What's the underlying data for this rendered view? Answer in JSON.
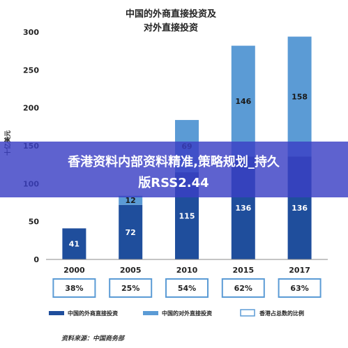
{
  "chart_data": {
    "type": "bar",
    "stacked": true,
    "title_lines": [
      "中国的外商直接投资及",
      "对外直接投资"
    ],
    "ylabel": "十亿美元",
    "ylim": [
      0,
      300
    ],
    "yticks": [
      "0",
      "50",
      "100",
      "150",
      "200",
      "250",
      "300"
    ],
    "categories": [
      "2000",
      "2005",
      "2010",
      "2015",
      "2017"
    ],
    "series": [
      {
        "name": "中国的外商直接投资",
        "color": "#1f4e9c",
        "values": [
          41,
          72,
          115,
          136,
          136
        ]
      },
      {
        "name": "中国的对外直接投资",
        "color": "#5b9bd5",
        "values": [
          0,
          12,
          69,
          146,
          158
        ]
      }
    ],
    "segment_labels": [
      {
        "category": "2000",
        "series": 0,
        "text": "41"
      },
      {
        "category": "2005",
        "series": 0,
        "text": "72"
      },
      {
        "category": "2005",
        "series": 1,
        "text": "12"
      },
      {
        "category": "2010",
        "series": 0,
        "text": "115"
      },
      {
        "category": "2010",
        "series": 1,
        "text": "69"
      },
      {
        "category": "2015",
        "series": 0,
        "text": "136"
      },
      {
        "category": "2015",
        "series": 1,
        "text": "146"
      },
      {
        "category": "2017",
        "series": 0,
        "text": "136"
      },
      {
        "category": "2017",
        "series": 1,
        "text": "158"
      }
    ],
    "hk_share": {
      "name": "香港占总数的比例",
      "values": [
        "38%",
        "25%",
        "54%",
        "62%",
        "63%"
      ]
    },
    "source": "资料来源：中国商务部",
    "grid": false,
    "legend_position": "bottom"
  },
  "banner": {
    "lines": [
      "香港资料内部资料精准,策略规划_持久",
      "版RSS2.44"
    ],
    "color": "#3b3fc4"
  }
}
